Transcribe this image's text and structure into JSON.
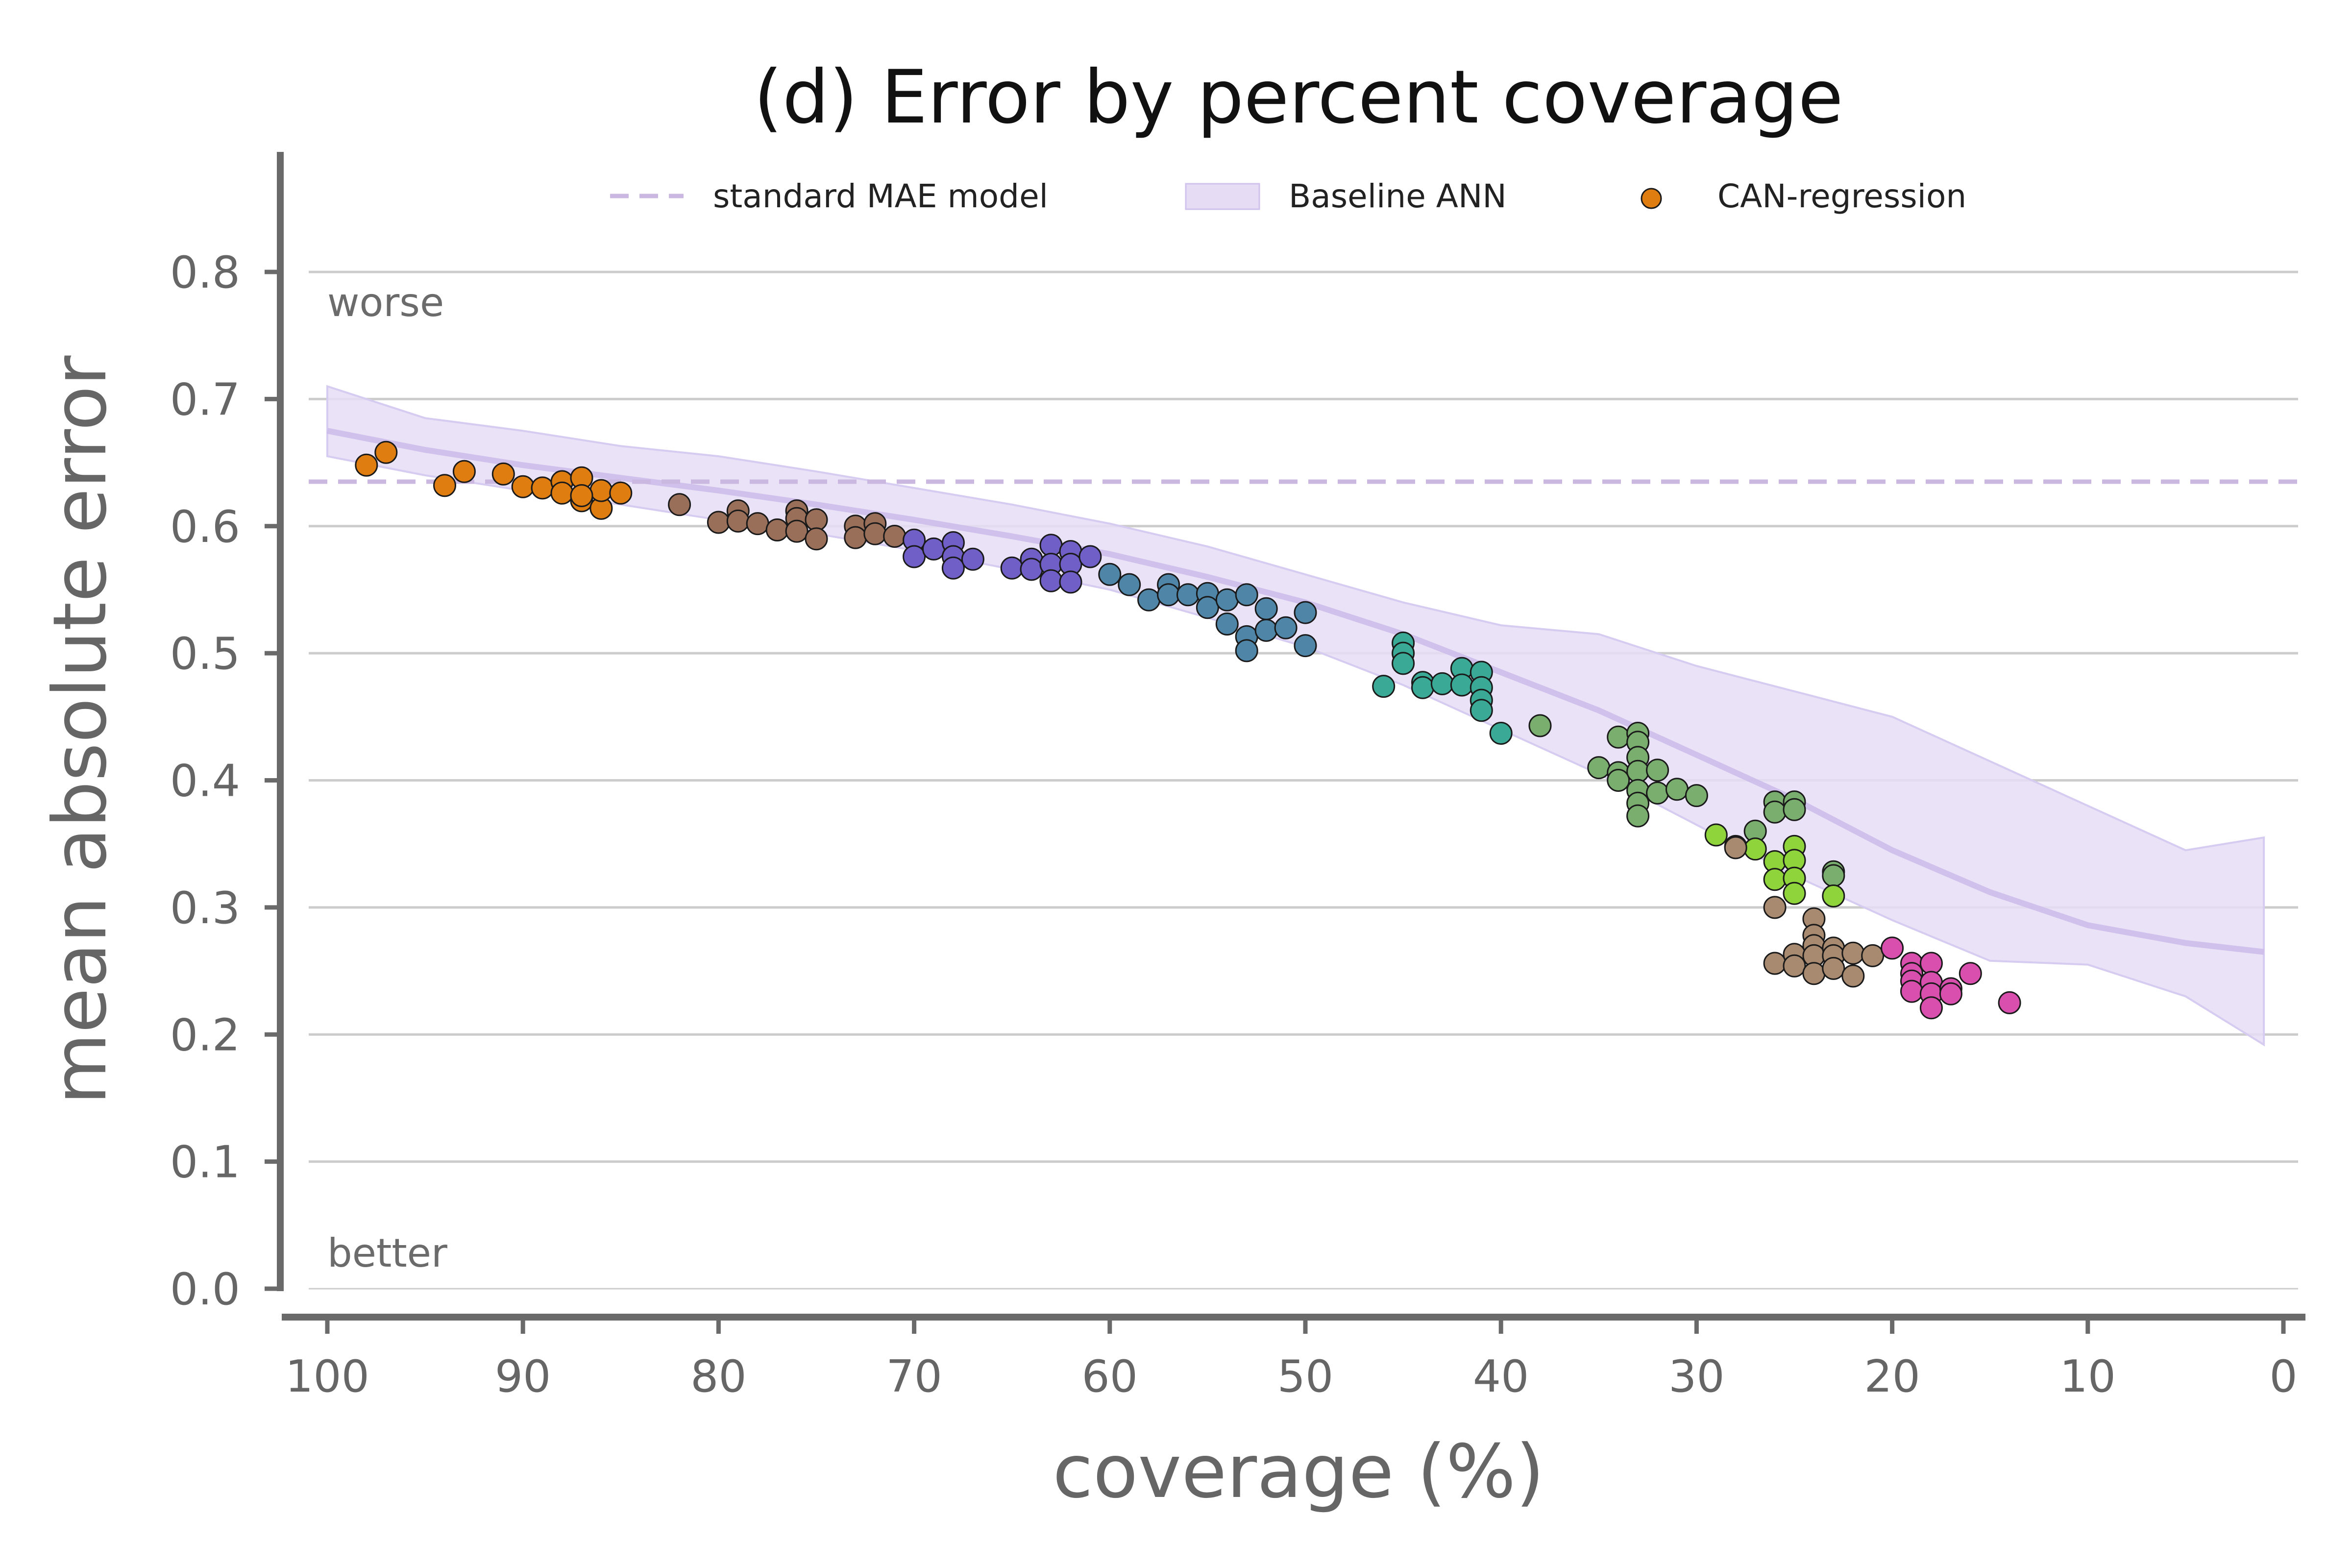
{
  "chart_data": {
    "type": "scatter",
    "title": "(d) Error by percent coverage",
    "xlabel": "coverage (%)",
    "ylabel": "mean absolute error",
    "xlim": [
      100,
      0
    ],
    "ylim": [
      0,
      0.88
    ],
    "x_ticks": [
      "100",
      "90",
      "80",
      "70",
      "60",
      "50",
      "40",
      "30",
      "20",
      "10",
      "0"
    ],
    "x_tick_values": [
      100,
      90,
      80,
      70,
      60,
      50,
      40,
      30,
      20,
      10,
      0
    ],
    "y_ticks": [
      "0.0",
      "0.1",
      "0.2",
      "0.3",
      "0.4",
      "0.5",
      "0.6",
      "0.7",
      "0.8"
    ],
    "y_tick_values": [
      0.0,
      0.1,
      0.2,
      0.3,
      0.4,
      0.5,
      0.6,
      0.7,
      0.8
    ],
    "grid": "horizontal",
    "legend_position": "top",
    "annotations": {
      "top": "worse",
      "bottom": "better"
    },
    "legend": {
      "standard": "standard MAE model",
      "baseline": "Baseline ANN",
      "can": "CAN-regression"
    },
    "colors": {
      "standard_line": "#cbb8e0",
      "baseline_band": "#e6ddf5",
      "baseline_line": "#c9b8ea",
      "legend_marker": "#e07d10",
      "point_edge": "#1a1a1a",
      "grid": "#cccccc",
      "axis": "#6a6a6a"
    },
    "standard_mae": 0.635,
    "baseline_ann": {
      "x": [
        100,
        95,
        90,
        85,
        80,
        75,
        70,
        65,
        60,
        55,
        50,
        45,
        40,
        35,
        30,
        25,
        20,
        15,
        10,
        5,
        1
      ],
      "mean": [
        0.675,
        0.66,
        0.648,
        0.638,
        0.628,
        0.617,
        0.605,
        0.592,
        0.578,
        0.56,
        0.54,
        0.515,
        0.485,
        0.455,
        0.42,
        0.385,
        0.345,
        0.312,
        0.286,
        0.272,
        0.265
      ],
      "lower": [
        0.655,
        0.64,
        0.628,
        0.617,
        0.605,
        0.594,
        0.581,
        0.566,
        0.55,
        0.528,
        0.505,
        0.475,
        0.44,
        0.405,
        0.365,
        0.325,
        0.29,
        0.258,
        0.255,
        0.23,
        0.192
      ],
      "upper": [
        0.71,
        0.685,
        0.675,
        0.663,
        0.655,
        0.643,
        0.63,
        0.617,
        0.602,
        0.584,
        0.562,
        0.54,
        0.522,
        0.515,
        0.49,
        0.47,
        0.45,
        0.415,
        0.38,
        0.345,
        0.355
      ]
    },
    "series": [
      {
        "color": "#e07d10",
        "points": [
          [
            98,
            0.648
          ],
          [
            97,
            0.658
          ],
          [
            94,
            0.632
          ],
          [
            93,
            0.643
          ],
          [
            91,
            0.641
          ],
          [
            90,
            0.631
          ],
          [
            89,
            0.63
          ],
          [
            88,
            0.635
          ],
          [
            88,
            0.626
          ],
          [
            87,
            0.638
          ],
          [
            87,
            0.62
          ],
          [
            86,
            0.614
          ],
          [
            86,
            0.628
          ],
          [
            85,
            0.626
          ],
          [
            87,
            0.624
          ]
        ]
      },
      {
        "color": "#996f5a",
        "points": [
          [
            82,
            0.617
          ],
          [
            80,
            0.603
          ],
          [
            79,
            0.612
          ],
          [
            79,
            0.604
          ],
          [
            78,
            0.602
          ],
          [
            77,
            0.597
          ],
          [
            76,
            0.612
          ],
          [
            76,
            0.606
          ],
          [
            76,
            0.596
          ],
          [
            75,
            0.605
          ],
          [
            75,
            0.59
          ],
          [
            73,
            0.6
          ],
          [
            73,
            0.591
          ],
          [
            72,
            0.602
          ],
          [
            72,
            0.594
          ],
          [
            71,
            0.592
          ]
        ]
      },
      {
        "color": "#6f5fc7",
        "points": [
          [
            70,
            0.589
          ],
          [
            70,
            0.576
          ],
          [
            69,
            0.582
          ],
          [
            68,
            0.587
          ],
          [
            68,
            0.576
          ],
          [
            68,
            0.567
          ],
          [
            67,
            0.574
          ],
          [
            65,
            0.567
          ],
          [
            64,
            0.574
          ],
          [
            64,
            0.566
          ],
          [
            63,
            0.585
          ],
          [
            63,
            0.57
          ],
          [
            63,
            0.557
          ],
          [
            62,
            0.58
          ],
          [
            62,
            0.57
          ],
          [
            62,
            0.556
          ],
          [
            61,
            0.576
          ]
        ]
      },
      {
        "color": "#4f86a8",
        "points": [
          [
            60,
            0.562
          ],
          [
            59,
            0.554
          ],
          [
            58,
            0.542
          ],
          [
            57,
            0.554
          ],
          [
            57,
            0.546
          ],
          [
            56,
            0.546
          ],
          [
            55,
            0.547
          ],
          [
            55,
            0.536
          ],
          [
            54,
            0.542
          ],
          [
            54,
            0.523
          ],
          [
            53,
            0.546
          ],
          [
            53,
            0.513
          ],
          [
            53,
            0.502
          ],
          [
            52,
            0.535
          ],
          [
            52,
            0.518
          ],
          [
            51,
            0.52
          ],
          [
            50,
            0.532
          ],
          [
            50,
            0.506
          ]
        ]
      },
      {
        "color": "#3aaa96",
        "points": [
          [
            46,
            0.474
          ],
          [
            45,
            0.508
          ],
          [
            45,
            0.5
          ],
          [
            45,
            0.492
          ],
          [
            44,
            0.477
          ],
          [
            44,
            0.473
          ],
          [
            43,
            0.476
          ],
          [
            42,
            0.488
          ],
          [
            42,
            0.475
          ],
          [
            41,
            0.485
          ],
          [
            41,
            0.473
          ],
          [
            41,
            0.463
          ],
          [
            41,
            0.455
          ],
          [
            40,
            0.437
          ]
        ]
      },
      {
        "color": "#7aae6e",
        "points": [
          [
            38,
            0.443
          ],
          [
            35,
            0.41
          ],
          [
            34,
            0.434
          ],
          [
            34,
            0.406
          ],
          [
            34,
            0.4
          ],
          [
            33,
            0.437
          ],
          [
            33,
            0.43
          ],
          [
            33,
            0.418
          ],
          [
            33,
            0.407
          ],
          [
            33,
            0.392
          ],
          [
            33,
            0.382
          ],
          [
            33,
            0.372
          ],
          [
            32,
            0.408
          ],
          [
            32,
            0.39
          ],
          [
            31,
            0.393
          ],
          [
            30,
            0.388
          ],
          [
            27,
            0.36
          ],
          [
            26,
            0.383
          ],
          [
            26,
            0.375
          ],
          [
            25,
            0.383
          ],
          [
            25,
            0.377
          ],
          [
            23,
            0.328
          ],
          [
            23,
            0.325
          ]
        ]
      },
      {
        "color": "#8fd43a",
        "points": [
          [
            29,
            0.357
          ],
          [
            28,
            0.348
          ],
          [
            27,
            0.346
          ],
          [
            26,
            0.336
          ],
          [
            26,
            0.322
          ],
          [
            25,
            0.348
          ],
          [
            25,
            0.337
          ],
          [
            25,
            0.323
          ],
          [
            25,
            0.311
          ],
          [
            23,
            0.309
          ]
        ]
      },
      {
        "color": "#a88a70",
        "points": [
          [
            28,
            0.347
          ],
          [
            26,
            0.3
          ],
          [
            26,
            0.256
          ],
          [
            25,
            0.263
          ],
          [
            25,
            0.254
          ],
          [
            24,
            0.291
          ],
          [
            24,
            0.278
          ],
          [
            24,
            0.27
          ],
          [
            24,
            0.262
          ],
          [
            24,
            0.248
          ],
          [
            23,
            0.268
          ],
          [
            23,
            0.262
          ],
          [
            23,
            0.252
          ],
          [
            22,
            0.264
          ],
          [
            22,
            0.246
          ],
          [
            21,
            0.262
          ]
        ]
      },
      {
        "color": "#d84fae",
        "points": [
          [
            20,
            0.268
          ],
          [
            19,
            0.256
          ],
          [
            19,
            0.248
          ],
          [
            19,
            0.242
          ],
          [
            19,
            0.234
          ],
          [
            18,
            0.256
          ],
          [
            18,
            0.241
          ],
          [
            18,
            0.232
          ],
          [
            18,
            0.221
          ],
          [
            17,
            0.236
          ],
          [
            17,
            0.232
          ],
          [
            16,
            0.248
          ],
          [
            14,
            0.225
          ]
        ]
      }
    ]
  }
}
